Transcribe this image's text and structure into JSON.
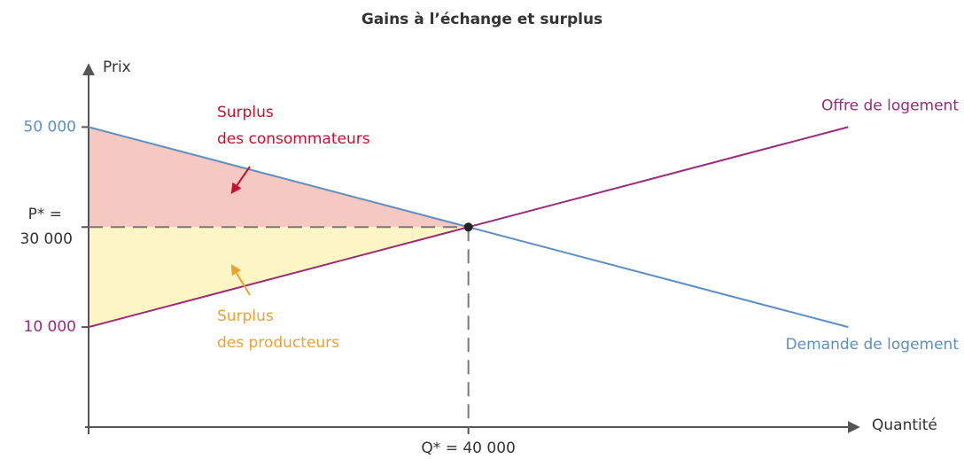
{
  "chart_data": {
    "type": "line",
    "title": "Gains à l’échange et surplus",
    "y_label": "Prix",
    "x_label": "Quantité",
    "x": [
      0,
      80000
    ],
    "series": [
      {
        "name": "Offre de logement",
        "color": "#9c2a7d",
        "values": [
          10000,
          50000
        ]
      },
      {
        "name": "Demande de logement",
        "color": "#5b8fc6",
        "values": [
          50000,
          10000
        ]
      }
    ],
    "equilibrium": {
      "x": 40000,
      "y": 30000
    },
    "annotations": [
      {
        "lines": [
          "Surplus",
          "des consommateurs"
        ],
        "color": "#c8102e",
        "fill": "#f5c8c1"
      },
      {
        "lines": [
          "Surplus",
          "des producteurs"
        ],
        "color": "#f0a030",
        "fill": "#fdf5c4"
      }
    ],
    "xlim": [
      0,
      81000
    ],
    "ylim": [
      -10000,
      63000
    ],
    "xticks": [
      {
        "value": 40000,
        "label": "Q* = 40 000"
      }
    ],
    "yticks": [
      {
        "value": 50000,
        "label": "50 000",
        "color": "#5b8fc6"
      },
      {
        "value": 30000,
        "label": "P* = 30 000",
        "color": "#333333"
      },
      {
        "value": 10000,
        "label": "10 000",
        "color": "#9c2a7d"
      }
    ]
  }
}
